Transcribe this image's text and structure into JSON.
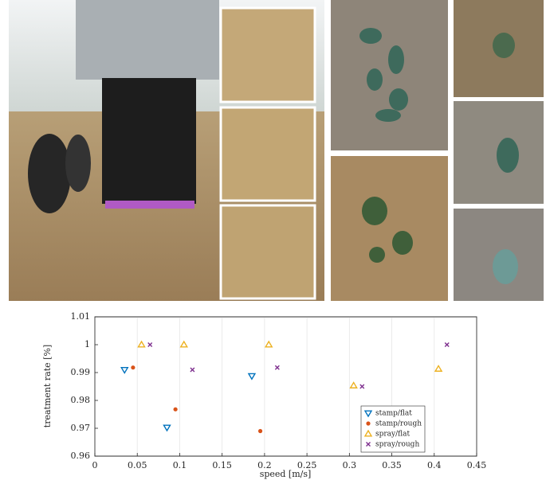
{
  "chart_data": {
    "type": "scatter",
    "xlabel": "speed [m/s]",
    "ylabel": "treatment rate [%]",
    "xlim": [
      0,
      0.45
    ],
    "xticks": [
      0,
      0.05,
      0.1,
      0.15,
      0.2,
      0.25,
      0.3,
      0.35,
      0.4,
      0.45
    ],
    "ylim": [
      0.96,
      1.01
    ],
    "yticks": [
      0.96,
      0.97,
      0.98,
      0.99,
      1,
      1.01
    ],
    "grid": true,
    "legend": "lower right",
    "series": [
      {
        "name": "stamp/flat",
        "color": "#0072bd",
        "marker": "v",
        "x": [
          0.035,
          0.085,
          0.185
        ],
        "values": [
          0.991,
          0.9703,
          0.9888
        ]
      },
      {
        "name": "stamp/rough",
        "color": "#d95319",
        "marker": "o",
        "x": [
          0.045,
          0.095,
          0.195
        ],
        "values": [
          0.9918,
          0.9768,
          0.969
        ]
      },
      {
        "name": "spray/flat",
        "color": "#edb120",
        "marker": "^",
        "x": [
          0.055,
          0.105,
          0.205,
          0.305,
          0.405
        ],
        "values": [
          1,
          1,
          1,
          0.9853,
          0.9913
        ]
      },
      {
        "name": "spray/rough",
        "color": "#7e2f8e",
        "marker": "x",
        "x": [
          0.065,
          0.115,
          0.215,
          0.315,
          0.415
        ],
        "values": [
          1,
          0.991,
          0.9918,
          0.985,
          1
        ]
      }
    ]
  }
}
